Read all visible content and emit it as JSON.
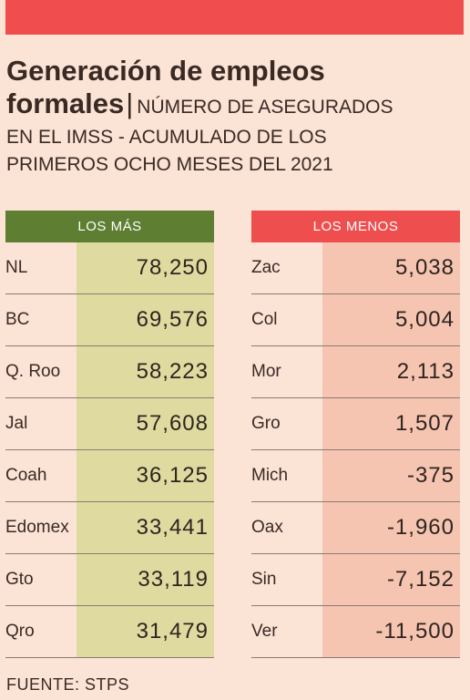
{
  "header": {
    "title_line1": "Generación de empleos",
    "title_line2": "formales",
    "separator": "|",
    "subtitle_line1": "NÚMERO DE ASEGURADOS",
    "subtitle_line2": "EN EL IMSS - ACUMULADO DE LOS",
    "subtitle_line3": "PRIMEROS OCHO MESES DEL 2021"
  },
  "colors": {
    "top_bar": "#f04e4e",
    "background": "#fbe3d6",
    "left_header": "#5e7e32",
    "left_values_bg": "#dfdba0",
    "right_header": "#ef4e4e",
    "right_values_bg": "#f6c5b1"
  },
  "chart_data": {
    "type": "table",
    "tables": [
      {
        "header": "LOS MÁS",
        "rows": [
          {
            "name": "NL",
            "value": "78,250"
          },
          {
            "name": "BC",
            "value": "69,576"
          },
          {
            "name": "Q. Roo",
            "value": "58,223"
          },
          {
            "name": "Jal",
            "value": "57,608"
          },
          {
            "name": "Coah",
            "value": "36,125"
          },
          {
            "name": "Edomex",
            "value": "33,441"
          },
          {
            "name": "Gto",
            "value": "33,119"
          },
          {
            "name": "Qro",
            "value": "31,479"
          }
        ]
      },
      {
        "header": "LOS MENOS",
        "rows": [
          {
            "name": "Zac",
            "value": "5,038"
          },
          {
            "name": "Col",
            "value": "5,004"
          },
          {
            "name": "Mor",
            "value": "2,113"
          },
          {
            "name": "Gro",
            "value": "1,507"
          },
          {
            "name": "Mich",
            "value": "-375"
          },
          {
            "name": "Oax",
            "value": "-1,960"
          },
          {
            "name": "Sin",
            "value": "-7,152"
          },
          {
            "name": "Ver",
            "value": "-11,500"
          }
        ]
      }
    ]
  },
  "footer": {
    "source": "FUENTE: STPS"
  }
}
